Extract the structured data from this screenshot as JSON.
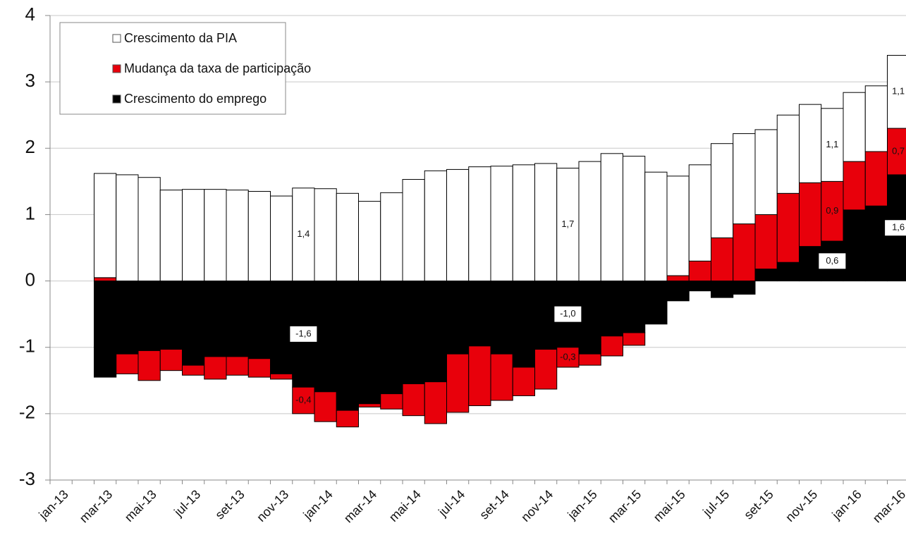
{
  "chart_data": {
    "type": "bar",
    "stacked": true,
    "categories": [
      "jan-13",
      null,
      "mar-13",
      null,
      "mai-13",
      null,
      "jul-13",
      null,
      "set-13",
      null,
      "nov-13",
      null,
      "jan-14",
      null,
      "mar-14",
      null,
      "mai-14",
      null,
      "jul-14",
      null,
      "set-14",
      null,
      "nov-14",
      null,
      "jan-15",
      null,
      "mar-15",
      null,
      "mai-15",
      null,
      "jul-15",
      null,
      "set-15",
      null,
      "nov-15",
      null,
      "jan-16",
      null,
      "mar-16"
    ],
    "series": [
      {
        "name": "Crescimento da PIA",
        "color": "#ffffff",
        "values": [
          null,
          null,
          1.57,
          1.6,
          1.56,
          1.37,
          1.38,
          1.38,
          1.37,
          1.35,
          1.28,
          1.4,
          1.39,
          1.32,
          1.2,
          1.33,
          1.53,
          1.66,
          1.68,
          1.72,
          1.73,
          1.75,
          1.77,
          1.7,
          1.8,
          1.92,
          1.88,
          1.64,
          1.5,
          1.45,
          1.42,
          1.36,
          1.28,
          1.18,
          1.18,
          1.1,
          1.04,
          0.99,
          1.1
        ],
        "value_labels": [
          null,
          null,
          null,
          null,
          null,
          null,
          null,
          null,
          null,
          null,
          null,
          "1,4",
          null,
          null,
          null,
          null,
          null,
          null,
          null,
          null,
          null,
          null,
          null,
          "1,7",
          null,
          null,
          null,
          null,
          null,
          null,
          null,
          null,
          null,
          null,
          null,
          "1,1",
          null,
          null,
          "1,1"
        ]
      },
      {
        "name": "Mudança da taxa de participação",
        "color": "#e8000b",
        "values": [
          null,
          null,
          0.05,
          -0.3,
          -0.45,
          -0.32,
          -0.15,
          -0.34,
          -0.28,
          -0.28,
          -0.08,
          -0.4,
          -0.45,
          -0.25,
          -0.05,
          -0.23,
          -0.48,
          -0.63,
          -0.88,
          -0.9,
          -0.7,
          -0.43,
          -0.6,
          -0.3,
          -0.17,
          -0.3,
          -0.19,
          0,
          0.08,
          0.3,
          0.65,
          0.86,
          0.82,
          1.04,
          0.96,
          0.9,
          0.73,
          0.82,
          0.7
        ],
        "value_labels": [
          null,
          null,
          null,
          null,
          null,
          null,
          null,
          null,
          null,
          null,
          null,
          "-0,4",
          null,
          null,
          null,
          null,
          null,
          null,
          null,
          null,
          null,
          null,
          null,
          "-0,3",
          null,
          null,
          null,
          null,
          null,
          null,
          null,
          null,
          null,
          null,
          null,
          "0,9",
          null,
          null,
          "0,7"
        ]
      },
      {
        "name": "Crescimento do emprego",
        "color": "#000000",
        "values": [
          null,
          null,
          -1.45,
          -1.1,
          -1.05,
          -1.03,
          -1.27,
          -1.14,
          -1.14,
          -1.17,
          -1.4,
          -1.6,
          -1.67,
          -1.95,
          -1.85,
          -1.7,
          -1.55,
          -1.52,
          -1.1,
          -0.98,
          -1.1,
          -1.3,
          -1.03,
          -1.0,
          -1.1,
          -0.83,
          -0.78,
          -0.65,
          -0.3,
          -0.15,
          -0.25,
          -0.2,
          0.18,
          0.28,
          0.52,
          0.6,
          1.07,
          1.13,
          1.6
        ],
        "value_labels": [
          null,
          null,
          null,
          null,
          null,
          null,
          null,
          null,
          null,
          null,
          null,
          "-1,6",
          null,
          null,
          null,
          null,
          null,
          null,
          null,
          null,
          null,
          null,
          null,
          "-1,0",
          null,
          null,
          null,
          null,
          null,
          null,
          null,
          null,
          null,
          null,
          null,
          "0,6",
          null,
          null,
          "1,6"
        ]
      }
    ],
    "ylim": [
      -3,
      4
    ],
    "yticks": [
      -3,
      -2,
      -1,
      0,
      1,
      2,
      3,
      4
    ],
    "grid": true,
    "legend": "upper left"
  }
}
